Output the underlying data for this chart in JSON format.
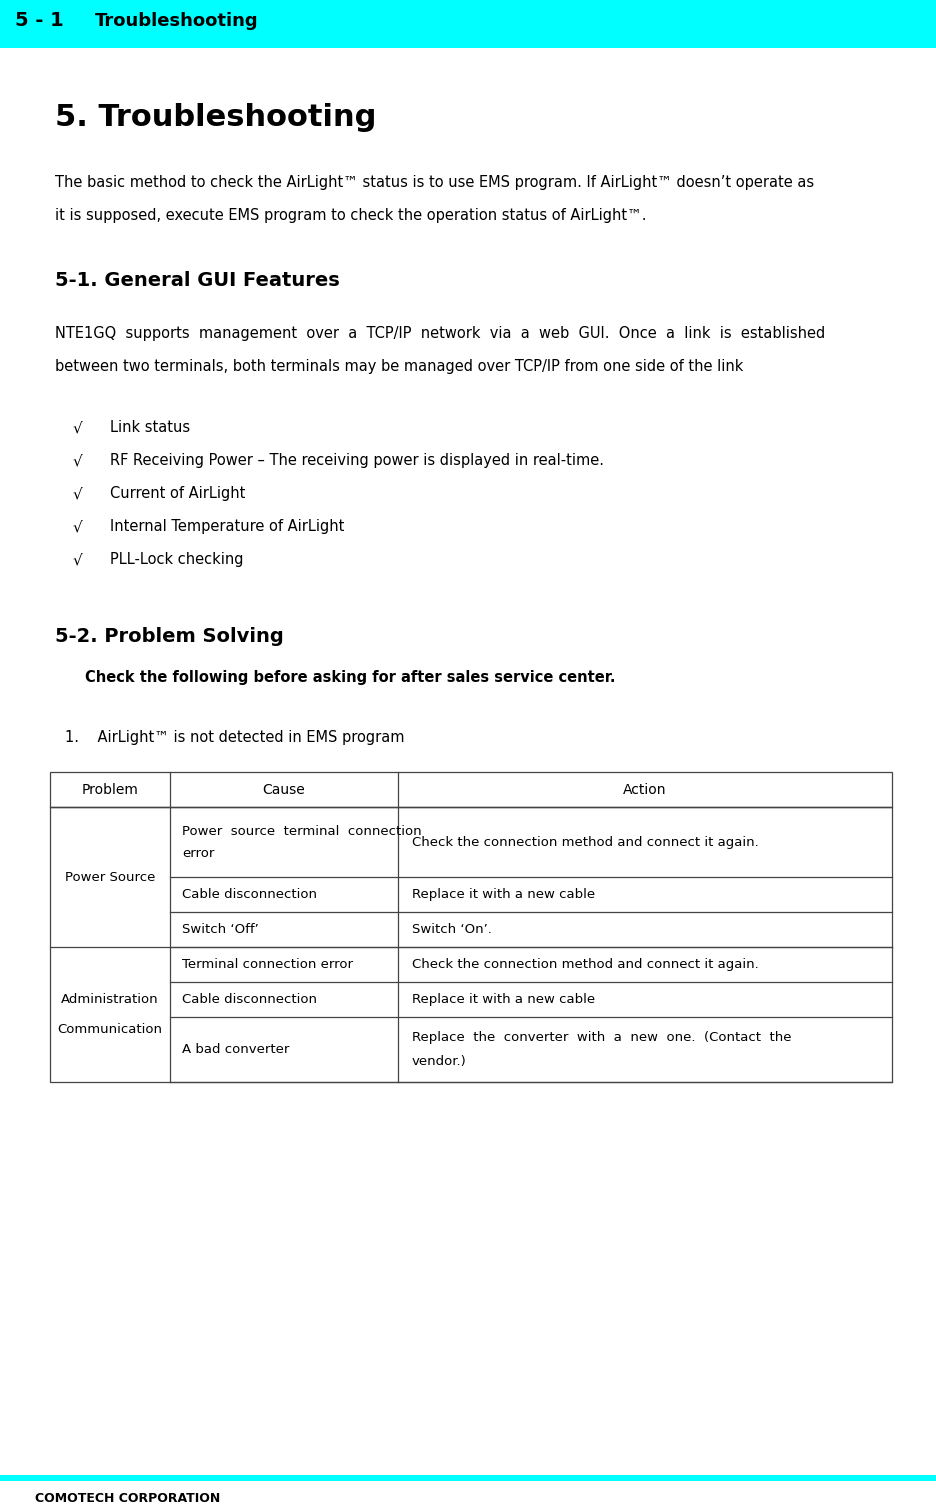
{
  "header_bg_color": "#00FFFF",
  "header_text": "Troubleshooting",
  "header_number": "5 - 1",
  "footer_text": "COMOTECH CORPORATION",
  "footer_line_color": "#00FFFF",
  "title": "5. Troubleshooting",
  "section1_title": "5-1. General GUI Features",
  "section2_title": "5-2. Problem Solving",
  "intro_text": "The basic method to check the AirLight™ status is to use EMS program. If AirLight™ doesn’t operate as\nit is supposed, execute EMS program to check the operation status of AirLight™.",
  "s1_para": "NTE1GQ  supports  management  over  a  TCP/IP  network  via  a  web  GUI.  Once  a  link  is  established\nbetween two terminals, both terminals may be managed over TCP/IP from one side of the link",
  "bullet_items": [
    "Link status",
    "RF Receiving Power – The receiving power is displayed in real-time.",
    "Current of AirLight",
    "Internal Temperature of AirLight",
    "PLL-Lock checking"
  ],
  "s2_check_text": "Check the following before asking for after sales service center.",
  "s2_item_title": "1.    AirLight™ is not detected in EMS program",
  "table_headers": [
    "Problem",
    "Cause",
    "Action"
  ],
  "bg_color": "#FFFFFF",
  "text_color": "#000000",
  "table_border_color": "#444444"
}
